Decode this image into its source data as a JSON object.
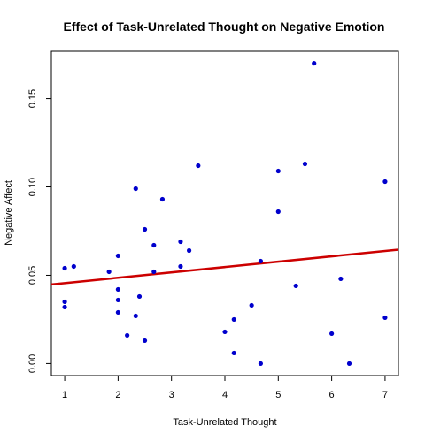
{
  "chart_data": {
    "type": "scatter",
    "title": "Effect of Task-Unrelated Thought on Negative Emotion",
    "xlabel": "Task-Unrelated Thought",
    "ylabel": "Negative Affect",
    "xlim": [
      0.75,
      7.25
    ],
    "ylim": [
      -0.0068,
      0.1768
    ],
    "x_ticks": [
      1,
      2,
      3,
      4,
      5,
      6,
      7
    ],
    "x_tick_labels": [
      "1",
      "2",
      "3",
      "4",
      "5",
      "6",
      "7"
    ],
    "y_ticks": [
      0.0,
      0.05,
      0.1,
      0.15
    ],
    "y_tick_labels": [
      "0.00",
      "0.05",
      "0.10",
      "0.15"
    ],
    "grid": false,
    "point_color": "#0000cd",
    "points": [
      {
        "x": 1.0,
        "y": 0.054
      },
      {
        "x": 1.17,
        "y": 0.055
      },
      {
        "x": 1.0,
        "y": 0.035
      },
      {
        "x": 1.0,
        "y": 0.032
      },
      {
        "x": 1.83,
        "y": 0.052
      },
      {
        "x": 2.0,
        "y": 0.061
      },
      {
        "x": 2.0,
        "y": 0.042
      },
      {
        "x": 2.0,
        "y": 0.036
      },
      {
        "x": 2.0,
        "y": 0.029
      },
      {
        "x": 2.17,
        "y": 0.016
      },
      {
        "x": 2.33,
        "y": 0.099
      },
      {
        "x": 2.33,
        "y": 0.027
      },
      {
        "x": 2.4,
        "y": 0.038
      },
      {
        "x": 2.5,
        "y": 0.076
      },
      {
        "x": 2.5,
        "y": 0.013
      },
      {
        "x": 2.67,
        "y": 0.067
      },
      {
        "x": 2.67,
        "y": 0.052
      },
      {
        "x": 2.83,
        "y": 0.093
      },
      {
        "x": 3.17,
        "y": 0.069
      },
      {
        "x": 3.17,
        "y": 0.055
      },
      {
        "x": 3.33,
        "y": 0.064
      },
      {
        "x": 3.5,
        "y": 0.112
      },
      {
        "x": 4.0,
        "y": 0.018
      },
      {
        "x": 4.17,
        "y": 0.025
      },
      {
        "x": 4.17,
        "y": 0.006
      },
      {
        "x": 4.5,
        "y": 0.033
      },
      {
        "x": 4.67,
        "y": 0.058
      },
      {
        "x": 4.67,
        "y": 0.0
      },
      {
        "x": 5.0,
        "y": 0.109
      },
      {
        "x": 5.0,
        "y": 0.086
      },
      {
        "x": 5.33,
        "y": 0.044
      },
      {
        "x": 5.5,
        "y": 0.113
      },
      {
        "x": 5.67,
        "y": 0.17
      },
      {
        "x": 6.0,
        "y": 0.017
      },
      {
        "x": 6.17,
        "y": 0.048
      },
      {
        "x": 6.33,
        "y": 0.0
      },
      {
        "x": 7.0,
        "y": 0.103
      },
      {
        "x": 7.0,
        "y": 0.026
      }
    ],
    "regression_line": {
      "color": "#cc0000",
      "x": [
        0.75,
        7.25
      ],
      "y": [
        0.0448,
        0.0645
      ]
    }
  }
}
